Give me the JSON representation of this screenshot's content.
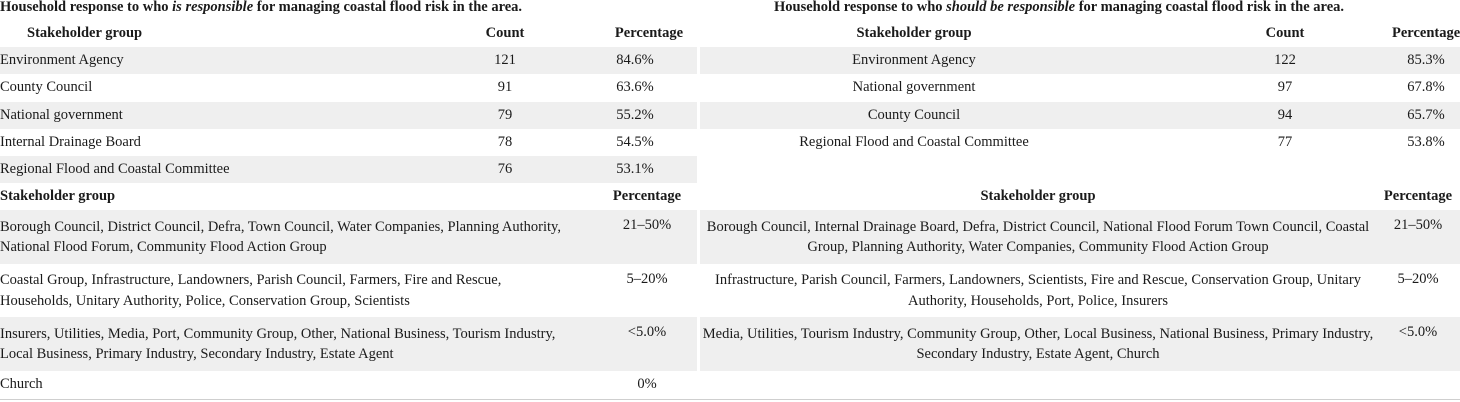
{
  "left": {
    "title": {
      "pre": "Household response to who ",
      "em": "is responsible",
      "post": " for managing coastal flood risk in the area."
    },
    "top_headers": [
      "Stakeholder group",
      "Count",
      "Percentage"
    ],
    "top_rows": [
      {
        "group": "Environment Agency",
        "count": "121",
        "pct": "84.6%"
      },
      {
        "group": "County Council",
        "count": "91",
        "pct": "63.6%"
      },
      {
        "group": "National government",
        "count": "79",
        "pct": "55.2%"
      },
      {
        "group": "Internal Drainage Board",
        "count": "78",
        "pct": "54.5%"
      },
      {
        "group": "Regional Flood and Coastal Committee",
        "count": "76",
        "pct": "53.1%"
      }
    ],
    "bottom_headers": [
      "Stakeholder group",
      "Percentage"
    ],
    "bottom_rows": [
      {
        "group": "Borough Council, District Council, Defra, Town Council, Water Companies, Planning Authority, National Flood Forum, Community Flood Action Group",
        "pct": "21–50%"
      },
      {
        "group": "Coastal Group, Infrastructure, Landowners, Parish Council, Farmers, Fire and Rescue, Households, Unitary Authority, Police, Conservation Group, Scientists",
        "pct": "5–20%"
      },
      {
        "group": "Insurers, Utilities, Media, Port, Community Group, Other, National Business, Tourism Industry, Local Business, Primary Industry, Secondary Industry, Estate Agent",
        "pct": "<5.0%"
      },
      {
        "group": "Church",
        "pct": "0%"
      }
    ]
  },
  "right": {
    "title": {
      "pre": "Household response to who ",
      "em": "should be responsible",
      "post": " for managing coastal flood risk in the area."
    },
    "top_headers": [
      "Stakeholder group",
      "Count",
      "Percentage"
    ],
    "top_rows": [
      {
        "group": "Environment Agency",
        "count": "122",
        "pct": "85.3%"
      },
      {
        "group": "National government",
        "count": "97",
        "pct": "67.8%"
      },
      {
        "group": "County Council",
        "count": "94",
        "pct": "65.7%"
      },
      {
        "group": "Regional Flood and Coastal Committee",
        "count": "77",
        "pct": "53.8%"
      }
    ],
    "bottom_headers": [
      "Stakeholder group",
      "Percentage"
    ],
    "bottom_rows": [
      {
        "group": "Borough Council, Internal Drainage Board, Defra, District Council, National Flood Forum Town Council, Coastal Group, Planning Authority, Water Companies, Community Flood Action Group",
        "pct": "21–50%"
      },
      {
        "group": "Infrastructure, Parish Council, Farmers, Landowners, Scientists, Fire and Rescue, Conservation Group, Unitary Authority, Households, Port, Police, Insurers",
        "pct": "5–20%"
      },
      {
        "group": "Media, Utilities, Tourism Industry, Community Group, Other, Local Business, National Business, Primary Industry, Secondary Industry, Estate Agent, Church",
        "pct": "<5.0%"
      }
    ]
  }
}
